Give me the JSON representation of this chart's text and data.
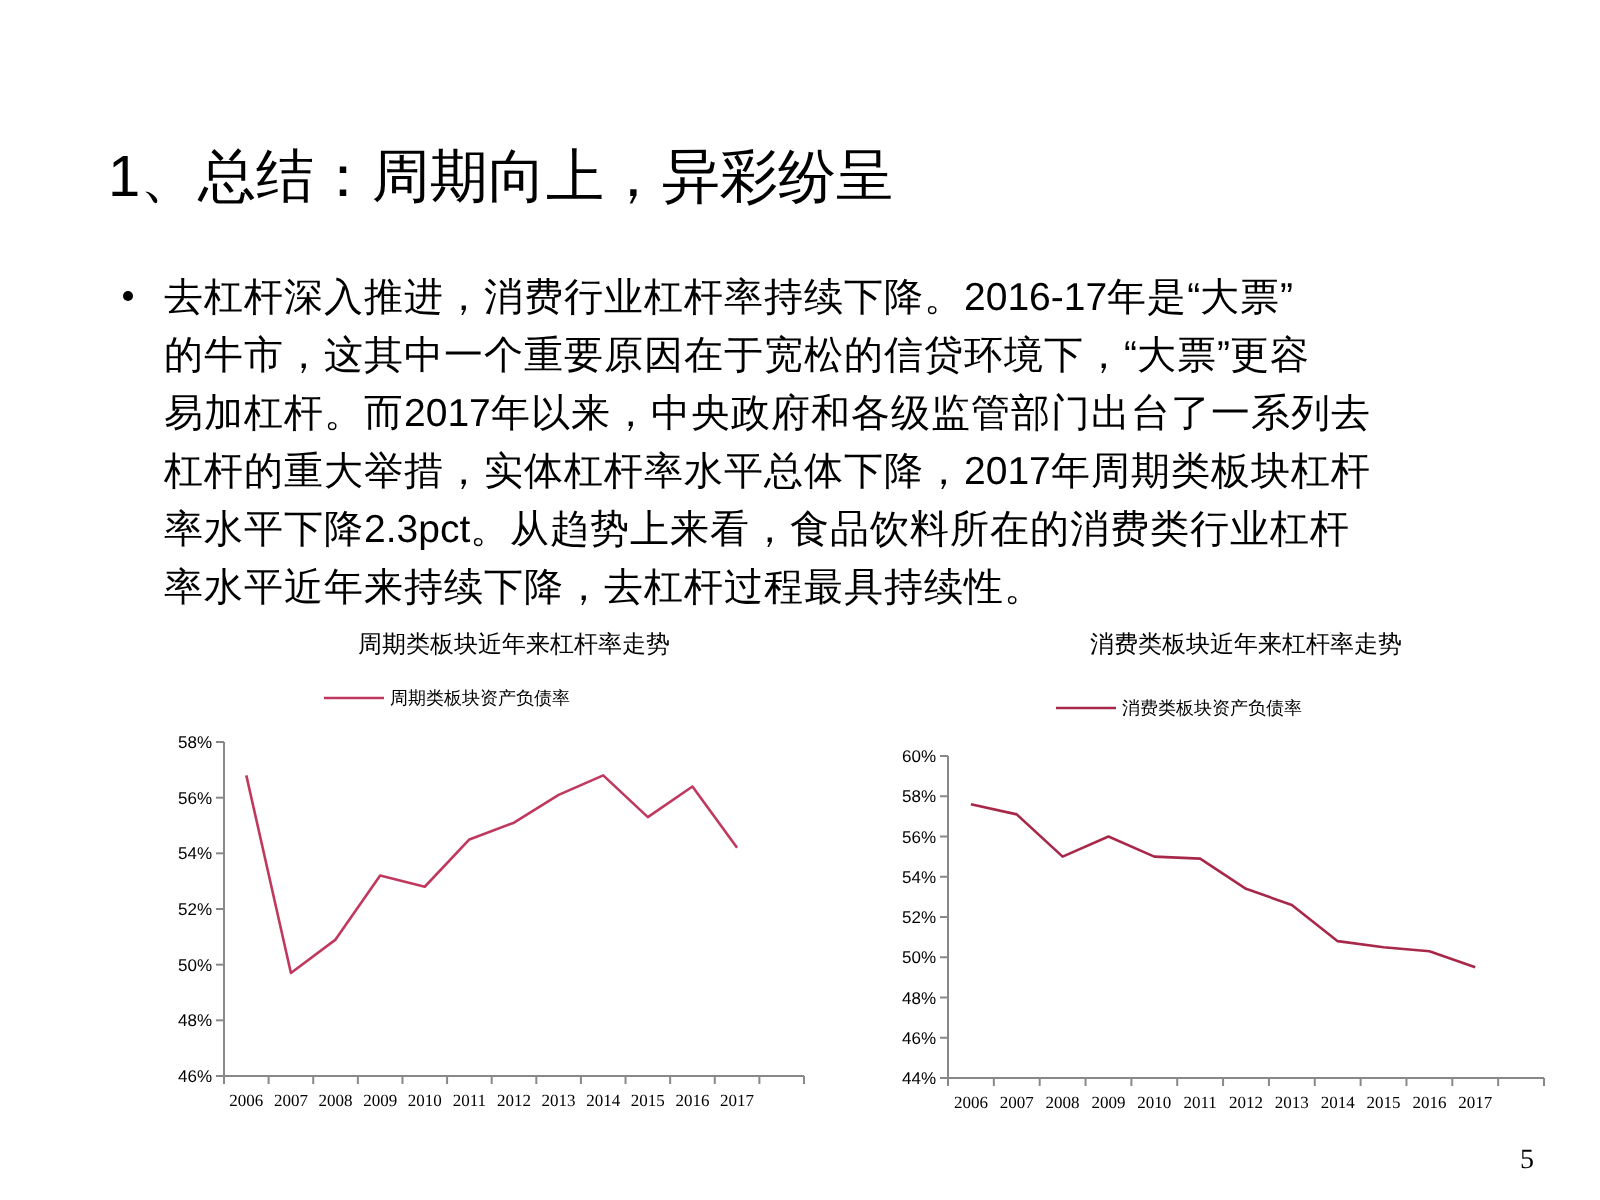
{
  "chart_data": [
    {
      "type": "line",
      "title": "周期类板块近年来杠杆率走势",
      "annotations": [
        "1、总结：周期向上，异彩纷呈",
        "去杠杆深入推进，消费行业杠杆率持续下降。2016-17年是“大票”",
        "的牛市，这其中一个重要原因在于宽松的信贷环境下，“大票”更容",
        "易加杠杆。而2017年以来，中央政府和各级监管部门出台了一系列去",
        "杠杆的重大举措，实体杠杆率水平总体下降，2017年周期类板块杠杆",
        "率水平下降2.3pct。从趋势上来看，食品饮料所在的消费类行业杠杆",
        "率水平近年来持续下降，去杠杆过程最具持续性。",
        "5"
      ],
      "categories": [
        "2006",
        "2007",
        "2008",
        "2009",
        "2010",
        "2011",
        "2012",
        "2013",
        "2014",
        "2015",
        "2016",
        "2017",
        null
      ],
      "series": [
        {
          "name": "周期类板块资产负债率",
          "color": "#c0385e",
          "values": [
            56.8,
            49.7,
            50.9,
            53.2,
            52.8,
            54.5,
            55.1,
            56.1,
            56.8,
            55.3,
            56.4,
            54.2,
            null
          ]
        }
      ],
      "ylim": [
        46,
        58
      ],
      "yticks": [
        {
          "value": 46,
          "label": "46%"
        },
        {
          "value": 48,
          "label": "48%"
        },
        {
          "value": 50,
          "label": "50%"
        },
        {
          "value": 52,
          "label": "52%"
        },
        {
          "value": 54,
          "label": "54%"
        },
        {
          "value": 56,
          "label": "56%"
        },
        {
          "value": 58,
          "label": "58%"
        }
      ],
      "grid": false,
      "legend": "top",
      "marker": "none"
    },
    {
      "type": "line",
      "title": "消费类板块近年来杠杆率走势",
      "categories": [
        "2006",
        "2007",
        "2008",
        "2009",
        "2010",
        "2011",
        "2012",
        "2013",
        "2014",
        "2015",
        "2016",
        "2017",
        null
      ],
      "series": [
        {
          "name": "消费类板块资产负债率",
          "color": "#a8284a",
          "values": [
            57.6,
            57.1,
            55.0,
            56.0,
            55.0,
            54.9,
            53.4,
            52.6,
            50.8,
            50.5,
            50.3,
            49.5,
            null
          ]
        }
      ],
      "ylim": [
        44,
        60
      ],
      "yticks": [
        {
          "value": 44,
          "label": "44%"
        },
        {
          "value": 46,
          "label": "46%"
        },
        {
          "value": 48,
          "label": "48%"
        },
        {
          "value": 50,
          "label": "50%"
        },
        {
          "value": 52,
          "label": "52%"
        },
        {
          "value": 54,
          "label": "54%"
        },
        {
          "value": 56,
          "label": "56%"
        },
        {
          "value": 58,
          "label": "58%"
        },
        {
          "value": 60,
          "label": "60%"
        }
      ],
      "grid": false,
      "legend": "top",
      "marker": "none"
    }
  ]
}
